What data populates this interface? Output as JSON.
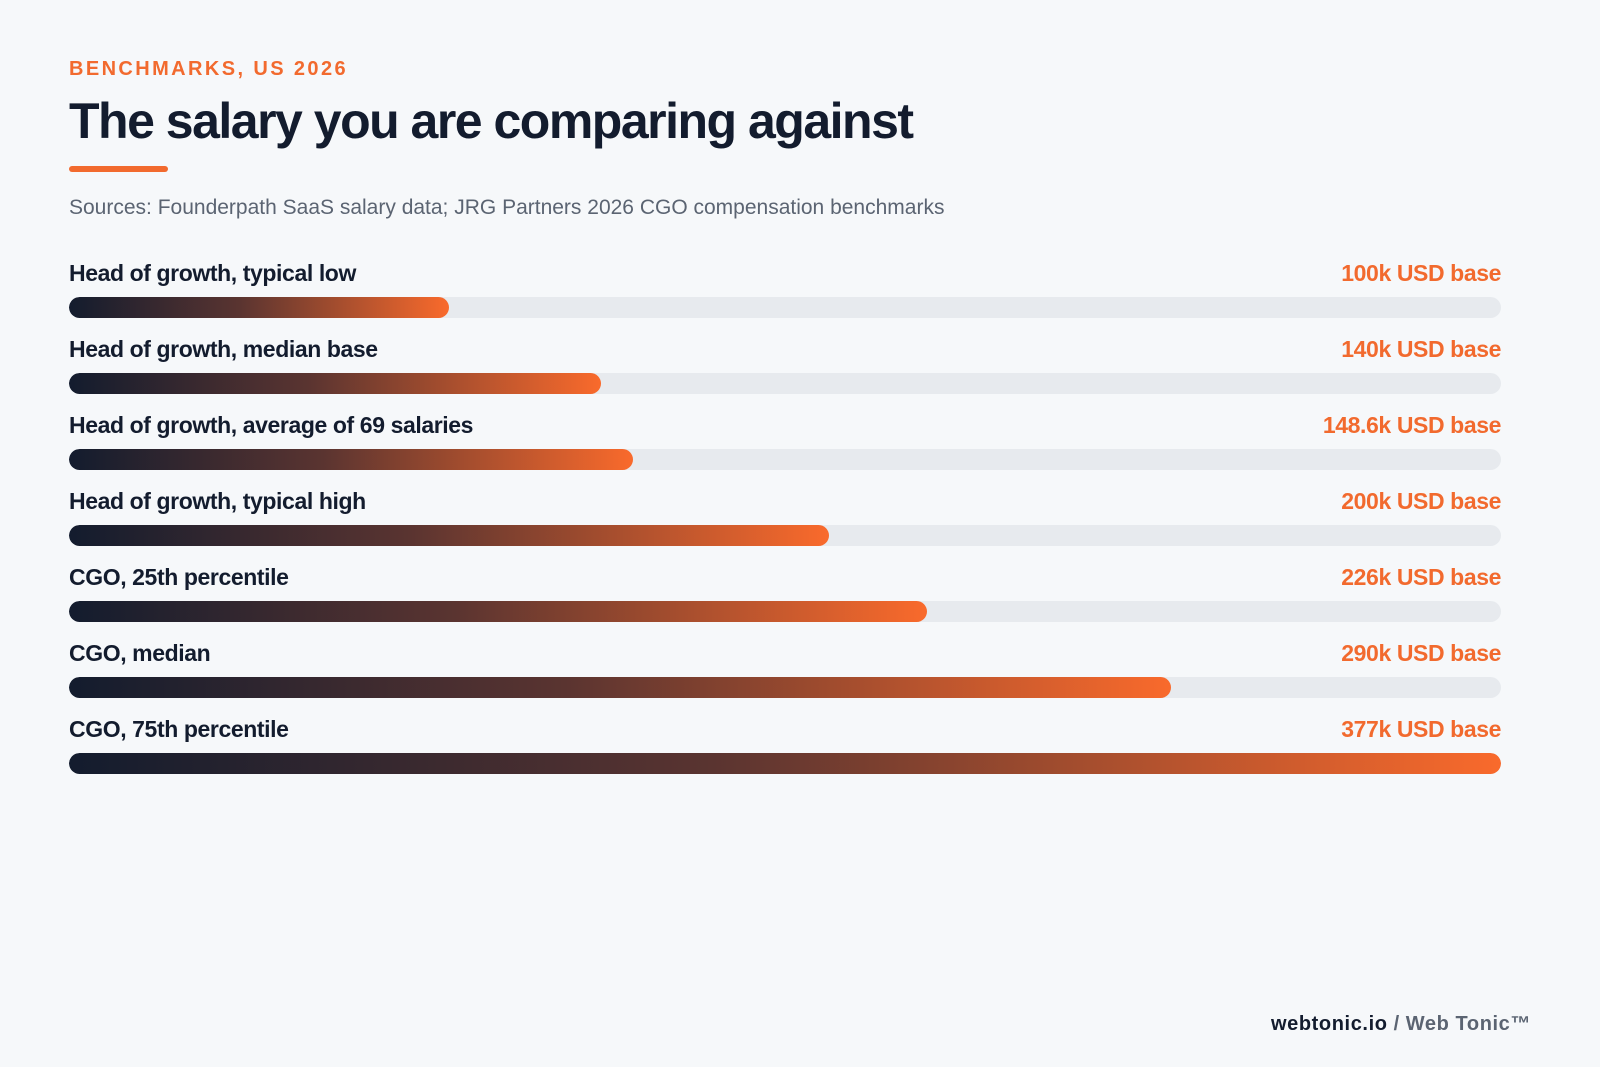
{
  "header": {
    "eyebrow": "BENCHMARKS, US 2026",
    "title": "The salary you are comparing against",
    "sources": "Sources: Founderpath SaaS salary data; JRG Partners 2026 CGO compensation benchmarks"
  },
  "colors": {
    "accent": "#f26a2e",
    "bar_start": "#131c2e",
    "bar_end": "#f96a2c",
    "track": "#e7eaee"
  },
  "chart_data": {
    "type": "bar",
    "orientation": "horizontal",
    "title": "The salary you are comparing against",
    "categories": [
      "Head of growth, typical low",
      "Head of growth, median base",
      "Head of growth, average of 69 salaries",
      "Head of growth, typical high",
      "CGO, 25th percentile",
      "CGO, median",
      "CGO, 75th percentile"
    ],
    "values": [
      100,
      140,
      148.6,
      200,
      226,
      290,
      377
    ],
    "value_labels": [
      "100k USD base",
      "140k USD base",
      "148.6k USD base",
      "200k USD base",
      "226k USD base",
      "290k USD base",
      "377k USD base"
    ],
    "xlim": [
      0,
      377
    ],
    "grid": false,
    "legend": "none"
  },
  "footer": {
    "domain": "webtonic.io",
    "separator": "/",
    "brand": "Web Tonic™"
  }
}
